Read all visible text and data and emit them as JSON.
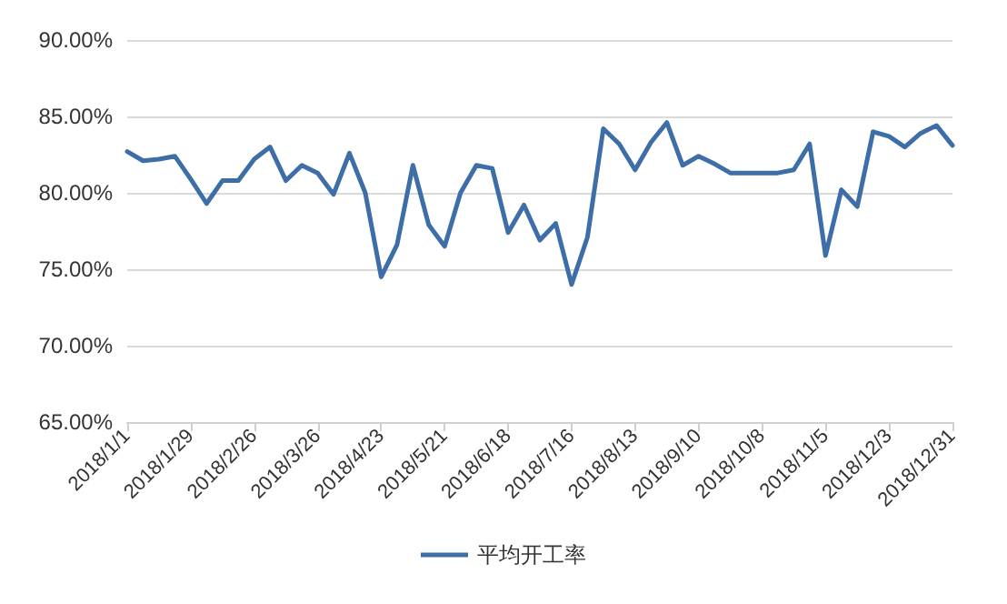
{
  "chart_data": {
    "type": "line",
    "categories": [
      "2018/1/1",
      null,
      null,
      null,
      "2018/1/29",
      null,
      null,
      null,
      "2018/2/26",
      null,
      null,
      null,
      "2018/3/26",
      null,
      null,
      null,
      "2018/4/23",
      null,
      null,
      null,
      "2018/5/21",
      null,
      null,
      null,
      "2018/6/18",
      null,
      null,
      null,
      "2018/7/16",
      null,
      null,
      null,
      "2018/8/13",
      null,
      null,
      null,
      "2018/9/10",
      null,
      null,
      null,
      "2018/10/8",
      null,
      null,
      null,
      "2018/11/5",
      null,
      null,
      null,
      "2018/12/3",
      null,
      null,
      null,
      "2018/12/31"
    ],
    "series": [
      {
        "name": "平均开工率",
        "color": "#3d6ea8",
        "values": [
          82.7,
          82.1,
          82.2,
          82.4,
          80.9,
          79.3,
          80.8,
          80.8,
          82.2,
          83.0,
          80.8,
          81.8,
          81.3,
          79.9,
          82.6,
          80.0,
          74.5,
          76.6,
          81.8,
          77.9,
          76.5,
          80.0,
          81.8,
          81.6,
          77.4,
          79.2,
          76.9,
          78.0,
          74.0,
          77.1,
          84.2,
          83.2,
          81.5,
          83.3,
          84.6,
          81.8,
          82.4,
          81.9,
          81.3,
          81.3,
          81.3,
          81.3,
          81.5,
          83.2,
          75.9,
          80.2,
          79.1,
          84.0,
          83.7,
          83.0,
          83.9,
          84.4,
          83.1
        ]
      }
    ],
    "ylim": [
      65,
      90
    ],
    "yticks": [
      {
        "value": 65,
        "label": "65.00%"
      },
      {
        "value": 70,
        "label": "70.00%"
      },
      {
        "value": 75,
        "label": "75.00%"
      },
      {
        "value": 80,
        "label": "80.00%"
      },
      {
        "value": 85,
        "label": "85.00%"
      },
      {
        "value": 90,
        "label": "90.00%"
      }
    ],
    "grid": "y",
    "legend": "bottom",
    "marker": "none",
    "line_style": "solid"
  }
}
